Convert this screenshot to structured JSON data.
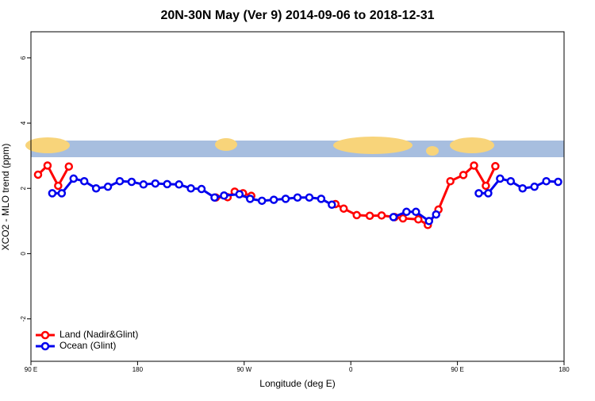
{
  "chart_data": {
    "type": "line",
    "title": "20N-30N May (Ver 9)   2014-09-06 to 2018-12-31",
    "x_label": "Longitude (deg E)",
    "y_label": "XCO2 - MLO trend (ppm)",
    "xlim": [
      90,
      540
    ],
    "xticks": [
      {
        "value": 90,
        "label": "90 E"
      },
      180,
      {
        "value": 270,
        "label": "90 W"
      },
      {
        "value": 360,
        "label": "0"
      },
      {
        "value": 450,
        "label": "90 E"
      },
      {
        "value": 540,
        "label": "180"
      }
    ],
    "ylim": [
      -3.3,
      6.8
    ],
    "yticks": [
      -2,
      0,
      2,
      4,
      6
    ],
    "legend": "bottom-left",
    "series": [
      {
        "name": "Land (Nadir&Glint)",
        "color": "#ff0000",
        "x": [
          96,
          104,
          113,
          122,
          null,
          246,
          256,
          262,
          269,
          276,
          null,
          347,
          354,
          365,
          376,
          386,
          397,
          404,
          417,
          425,
          434,
          444,
          455,
          464,
          474,
          482
        ],
        "values": [
          2.42,
          2.7,
          2.08,
          2.67,
          null,
          1.72,
          1.73,
          1.9,
          1.85,
          1.77,
          null,
          1.52,
          1.38,
          1.18,
          1.16,
          1.17,
          1.12,
          1.08,
          1.05,
          0.88,
          1.35,
          2.22,
          2.41,
          2.7,
          2.08,
          2.68
        ]
      },
      {
        "name": "Ocean (Glint)",
        "color": "#0000ee",
        "x": [
          108,
          116,
          126,
          135,
          145,
          155,
          165,
          175,
          185,
          195,
          205,
          215,
          225,
          234,
          245,
          253,
          266,
          275,
          285,
          295,
          305,
          315,
          325,
          335,
          344,
          null,
          396,
          407,
          415,
          426,
          432,
          null,
          468,
          476,
          486,
          495,
          505,
          515,
          525,
          535
        ],
        "values": [
          1.85,
          1.85,
          2.3,
          2.22,
          2.0,
          2.05,
          2.22,
          2.2,
          2.12,
          2.15,
          2.13,
          2.12,
          2.0,
          1.98,
          1.72,
          1.78,
          1.82,
          1.68,
          1.62,
          1.65,
          1.68,
          1.72,
          1.72,
          1.68,
          1.5,
          null,
          1.12,
          1.28,
          1.28,
          1.0,
          1.2,
          null,
          1.85,
          1.85,
          2.3,
          2.22,
          2.0,
          2.05,
          2.22,
          2.2
        ]
      }
    ]
  }
}
